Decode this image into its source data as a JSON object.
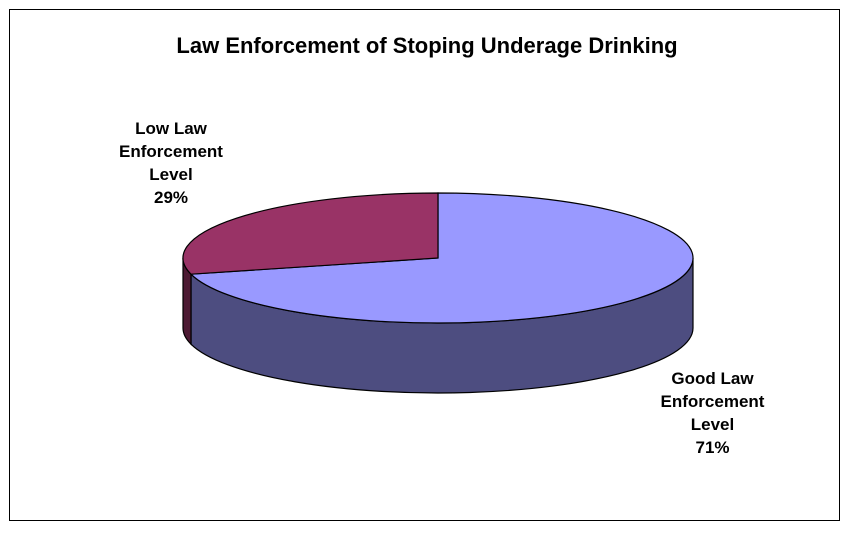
{
  "chart_data": {
    "type": "pie",
    "title": "Law Enforcement of Stoping Underage Drinking",
    "three_d": true,
    "slices": [
      {
        "label_lines": [
          "Good Law",
          "Enforcement",
          "Level"
        ],
        "percent_label": "71%",
        "value": 71,
        "color": "#9999FF",
        "side_color": "#4D4D80"
      },
      {
        "label_lines": [
          "Low Law",
          "Enforcement",
          "Level"
        ],
        "percent_label": "29%",
        "value": 29,
        "color": "#993366",
        "side_color": "#4D1A33"
      }
    ]
  }
}
